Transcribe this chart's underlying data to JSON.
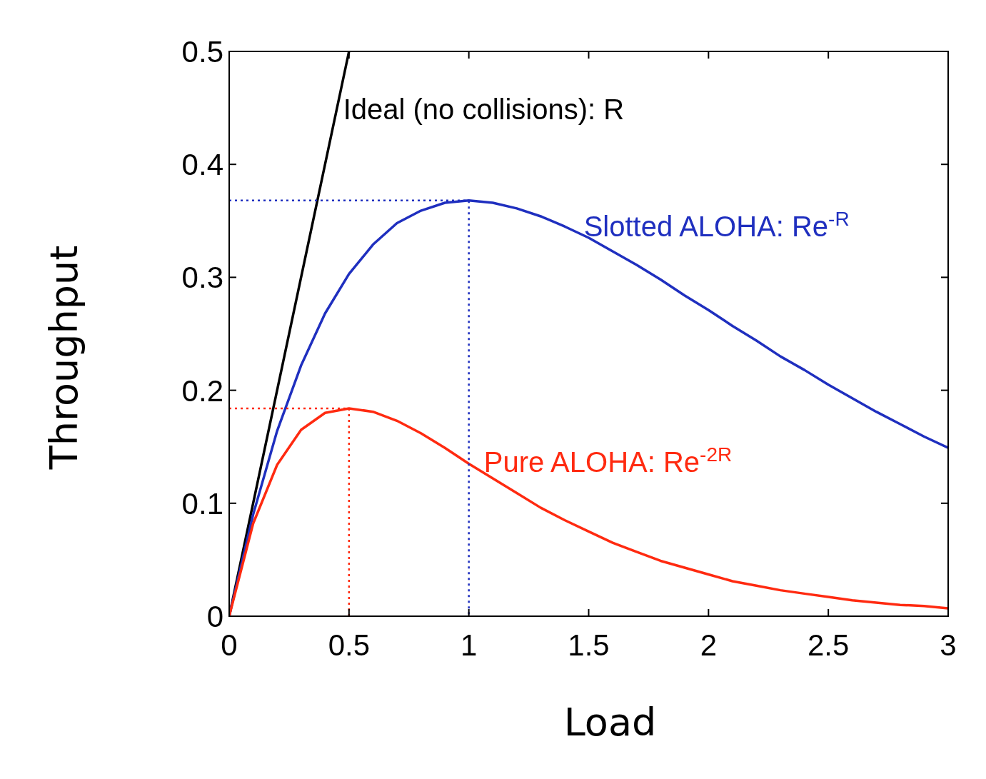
{
  "chart_data": {
    "type": "line",
    "xlabel": "Load",
    "ylabel": "Throughput",
    "xlim": [
      0,
      3
    ],
    "ylim": [
      0,
      0.5
    ],
    "xticks": [
      0,
      0.5,
      1,
      1.5,
      2,
      2.5,
      3
    ],
    "yticks": [
      0,
      0.1,
      0.2,
      0.3,
      0.4,
      0.5
    ],
    "grid": false,
    "series": [
      {
        "color": "#000000",
        "x": [
          0,
          0.5
        ],
        "values": [
          0,
          0.5
        ],
        "line_style": "solid"
      },
      {
        "color": "#1f2fbf",
        "x": [
          0,
          0.1,
          0.2,
          0.3,
          0.4,
          0.5,
          0.6,
          0.7,
          0.8,
          0.9,
          1,
          1.1,
          1.2,
          1.3,
          1.4,
          1.5,
          1.6,
          1.7,
          1.8,
          1.9,
          2,
          2.1,
          2.2,
          2.3,
          2.4,
          2.5,
          2.6,
          2.7,
          2.8,
          2.9,
          3
        ],
        "values": [
          0,
          0.09,
          0.164,
          0.222,
          0.268,
          0.303,
          0.329,
          0.348,
          0.359,
          0.366,
          0.368,
          0.366,
          0.361,
          0.354,
          0.345,
          0.335,
          0.323,
          0.311,
          0.298,
          0.284,
          0.271,
          0.257,
          0.244,
          0.23,
          0.218,
          0.205,
          0.193,
          0.181,
          0.17,
          0.159,
          0.149
        ],
        "line_style": "solid"
      },
      {
        "color": "#ff2a10",
        "x": [
          0,
          0.1,
          0.2,
          0.3,
          0.4,
          0.5,
          0.6,
          0.7,
          0.8,
          0.9,
          1,
          1.1,
          1.2,
          1.3,
          1.4,
          1.5,
          1.6,
          1.7,
          1.8,
          1.9,
          2,
          2.1,
          2.2,
          2.3,
          2.4,
          2.5,
          2.6,
          2.7,
          2.8,
          2.9,
          3
        ],
        "values": [
          0,
          0.082,
          0.134,
          0.165,
          0.18,
          0.184,
          0.181,
          0.173,
          0.162,
          0.149,
          0.135,
          0.122,
          0.109,
          0.096,
          0.085,
          0.075,
          0.065,
          0.057,
          0.049,
          0.043,
          0.037,
          0.031,
          0.027,
          0.023,
          0.02,
          0.017,
          0.014,
          0.012,
          0.01,
          0.009,
          0.007
        ],
        "line_style": "solid"
      },
      {
        "color": "#1f2fbf",
        "x": [
          0,
          1,
          1
        ],
        "values": [
          0.368,
          0.368,
          0
        ],
        "line_style": "dotted"
      },
      {
        "color": "#ff2a10",
        "x": [
          0,
          0.5,
          0.5
        ],
        "values": [
          0.184,
          0.184,
          0
        ],
        "line_style": "dotted"
      }
    ],
    "annotations": [
      {
        "text": "Ideal (no collisions): R",
        "x": 0.44,
        "y": 0.44
      },
      {
        "text": "Slotted ALOHA: Re$^{-R}$",
        "x": 1.444,
        "y": 0.336
      },
      {
        "text": "Pure ALOHA: Re$^{-2R}$",
        "x": 1.027,
        "y": 0.128
      }
    ]
  }
}
